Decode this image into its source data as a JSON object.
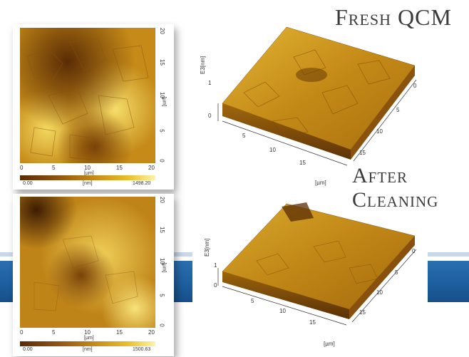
{
  "titles": {
    "fresh": "Fresh QCM",
    "after_line1": "After",
    "after_line2": "Cleaning"
  },
  "top_map": {
    "axis_x_ticks": [
      "0",
      "5",
      "10",
      "15",
      "20"
    ],
    "axis_y_ticks": [
      "0",
      "5",
      "10",
      "15",
      "20"
    ],
    "axis_unit": "[µm]",
    "colorbar_min": "0.00",
    "colorbar_unit": "[nm]",
    "colorbar_max": "1498.20"
  },
  "bottom_map": {
    "axis_x_ticks": [
      "0",
      "5",
      "10",
      "15",
      "20"
    ],
    "axis_y_ticks": [
      "0",
      "5",
      "10",
      "15",
      "20"
    ],
    "axis_unit": "[µm]",
    "colorbar_min": "0.00",
    "colorbar_unit": "[nm]",
    "colorbar_max": "1500.63"
  },
  "top_3d": {
    "z_label": "E3[nm]",
    "z_ticks": [
      "0",
      "1"
    ],
    "x_ticks": [
      "5",
      "10",
      "15"
    ],
    "y_ticks": [
      "0",
      "5",
      "10",
      "15"
    ],
    "unit": "[µm]"
  },
  "bottom_3d": {
    "z_label": "E3[nm]",
    "z_ticks": [
      "0",
      "1"
    ],
    "x_ticks": [
      "5",
      "10",
      "15"
    ],
    "y_ticks": [
      "0",
      "5",
      "10",
      "15"
    ],
    "unit": "[µm]"
  },
  "colors": {
    "band": "#1d5f9f",
    "afm_dark": "#5a2c05",
    "afm_mid": "#c58a18",
    "afm_light": "#f3d860"
  }
}
